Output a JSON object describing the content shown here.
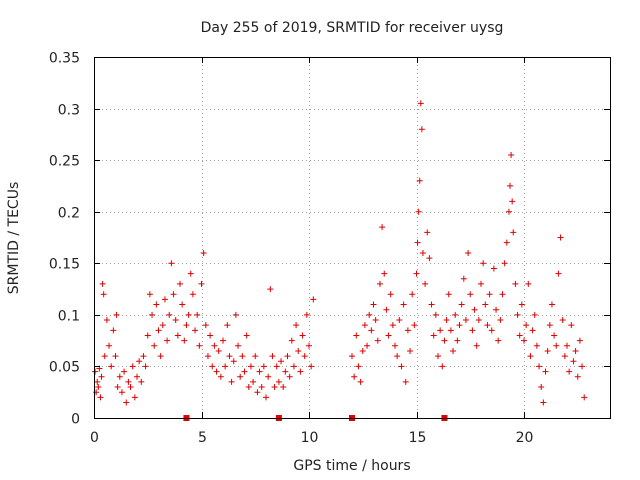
{
  "chart_data": {
    "type": "scatter",
    "title": "Day 255 of 2019, SRMTID for receiver uysg",
    "xlabel": "GPS time / hours",
    "ylabel": "SRMTID / TECUs",
    "xlim": [
      0,
      24
    ],
    "ylim": [
      0,
      0.35
    ],
    "grid": true,
    "marker": "+",
    "color": "#e00000",
    "x_ticks": [
      {
        "value": 0,
        "label": "0"
      },
      {
        "value": 5,
        "label": "5"
      },
      {
        "value": 10,
        "label": "10"
      },
      {
        "value": 15,
        "label": "15"
      },
      {
        "value": 20,
        "label": "20"
      }
    ],
    "y_ticks": [
      {
        "value": 0,
        "label": "0"
      },
      {
        "value": 0.05,
        "label": "0.05"
      },
      {
        "value": 0.1,
        "label": "0.1"
      },
      {
        "value": 0.15,
        "label": "0.15"
      },
      {
        "value": 0.2,
        "label": "0.2"
      },
      {
        "value": 0.25,
        "label": "0.25"
      },
      {
        "value": 0.3,
        "label": "0.3"
      },
      {
        "value": 0.35,
        "label": "0.35"
      }
    ],
    "gap_markers_x": [
      4.3,
      8.6,
      12.0,
      16.3
    ],
    "series": [
      {
        "name": "SRMTID",
        "points": [
          [
            0.05,
            0.045
          ],
          [
            0.1,
            0.025
          ],
          [
            0.15,
            0.035
          ],
          [
            0.2,
            0.03
          ],
          [
            0.25,
            0.048
          ],
          [
            0.3,
            0.02
          ],
          [
            0.35,
            0.04
          ],
          [
            0.4,
            0.13
          ],
          [
            0.45,
            0.12
          ],
          [
            0.5,
            0.06
          ],
          [
            0.6,
            0.095
          ],
          [
            0.7,
            0.07
          ],
          [
            0.8,
            0.05
          ],
          [
            0.9,
            0.085
          ],
          [
            1.0,
            0.06
          ],
          [
            1.05,
            0.1
          ],
          [
            1.1,
            0.03
          ],
          [
            1.2,
            0.04
          ],
          [
            1.3,
            0.025
          ],
          [
            1.4,
            0.045
          ],
          [
            1.5,
            0.015
          ],
          [
            1.6,
            0.035
          ],
          [
            1.7,
            0.03
          ],
          [
            1.8,
            0.05
          ],
          [
            1.9,
            0.02
          ],
          [
            2.0,
            0.04
          ],
          [
            2.1,
            0.055
          ],
          [
            2.2,
            0.035
          ],
          [
            2.3,
            0.06
          ],
          [
            2.4,
            0.05
          ],
          [
            2.5,
            0.08
          ],
          [
            2.6,
            0.12
          ],
          [
            2.7,
            0.1
          ],
          [
            2.8,
            0.07
          ],
          [
            2.9,
            0.11
          ],
          [
            3.0,
            0.085
          ],
          [
            3.1,
            0.06
          ],
          [
            3.2,
            0.09
          ],
          [
            3.3,
            0.115
          ],
          [
            3.4,
            0.075
          ],
          [
            3.5,
            0.1
          ],
          [
            3.6,
            0.15
          ],
          [
            3.7,
            0.12
          ],
          [
            3.8,
            0.095
          ],
          [
            3.9,
            0.08
          ],
          [
            4.0,
            0.13
          ],
          [
            4.1,
            0.11
          ],
          [
            4.2,
            0.075
          ],
          [
            4.3,
            0.09
          ],
          [
            4.4,
            0.1
          ],
          [
            4.5,
            0.14
          ],
          [
            4.6,
            0.12
          ],
          [
            4.7,
            0.085
          ],
          [
            4.8,
            0.1
          ],
          [
            4.9,
            0.07
          ],
          [
            5.0,
            0.13
          ],
          [
            5.1,
            0.16
          ],
          [
            5.2,
            0.09
          ],
          [
            5.3,
            0.06
          ],
          [
            5.4,
            0.08
          ],
          [
            5.5,
            0.05
          ],
          [
            5.6,
            0.07
          ],
          [
            5.7,
            0.045
          ],
          [
            5.8,
            0.065
          ],
          [
            5.9,
            0.04
          ],
          [
            6.0,
            0.075
          ],
          [
            6.1,
            0.05
          ],
          [
            6.2,
            0.09
          ],
          [
            6.3,
            0.06
          ],
          [
            6.4,
            0.035
          ],
          [
            6.5,
            0.055
          ],
          [
            6.6,
            0.1
          ],
          [
            6.7,
            0.07
          ],
          [
            6.8,
            0.04
          ],
          [
            6.9,
            0.06
          ],
          [
            7.0,
            0.045
          ],
          [
            7.1,
            0.08
          ],
          [
            7.2,
            0.03
          ],
          [
            7.3,
            0.05
          ],
          [
            7.4,
            0.035
          ],
          [
            7.5,
            0.06
          ],
          [
            7.6,
            0.025
          ],
          [
            7.7,
            0.045
          ],
          [
            7.8,
            0.03
          ],
          [
            7.9,
            0.05
          ],
          [
            8.0,
            0.02
          ],
          [
            8.1,
            0.04
          ],
          [
            8.2,
            0.125
          ],
          [
            8.3,
            0.06
          ],
          [
            8.4,
            0.03
          ],
          [
            8.5,
            0.05
          ],
          [
            8.6,
            0.035
          ],
          [
            8.7,
            0.055
          ],
          [
            8.8,
            0.03
          ],
          [
            8.9,
            0.045
          ],
          [
            9.0,
            0.06
          ],
          [
            9.1,
            0.04
          ],
          [
            9.2,
            0.075
          ],
          [
            9.3,
            0.05
          ],
          [
            9.4,
            0.09
          ],
          [
            9.5,
            0.065
          ],
          [
            9.6,
            0.045
          ],
          [
            9.7,
            0.08
          ],
          [
            9.8,
            0.06
          ],
          [
            9.9,
            0.1
          ],
          [
            10.0,
            0.07
          ],
          [
            10.1,
            0.05
          ],
          [
            10.2,
            0.115
          ],
          [
            12.0,
            0.06
          ],
          [
            12.1,
            0.04
          ],
          [
            12.2,
            0.08
          ],
          [
            12.3,
            0.05
          ],
          [
            12.4,
            0.035
          ],
          [
            12.5,
            0.065
          ],
          [
            12.6,
            0.09
          ],
          [
            12.7,
            0.07
          ],
          [
            12.8,
            0.1
          ],
          [
            12.9,
            0.085
          ],
          [
            13.0,
            0.11
          ],
          [
            13.1,
            0.095
          ],
          [
            13.2,
            0.075
          ],
          [
            13.3,
            0.13
          ],
          [
            13.4,
            0.185
          ],
          [
            13.5,
            0.14
          ],
          [
            13.6,
            0.105
          ],
          [
            13.7,
            0.08
          ],
          [
            13.8,
            0.12
          ],
          [
            13.9,
            0.09
          ],
          [
            14.0,
            0.07
          ],
          [
            14.1,
            0.06
          ],
          [
            14.2,
            0.095
          ],
          [
            14.3,
            0.05
          ],
          [
            14.4,
            0.11
          ],
          [
            14.5,
            0.035
          ],
          [
            14.6,
            0.085
          ],
          [
            14.7,
            0.065
          ],
          [
            14.8,
            0.12
          ],
          [
            14.9,
            0.09
          ],
          [
            15.0,
            0.14
          ],
          [
            15.05,
            0.17
          ],
          [
            15.1,
            0.2
          ],
          [
            15.15,
            0.23
          ],
          [
            15.2,
            0.305
          ],
          [
            15.25,
            0.28
          ],
          [
            15.3,
            0.16
          ],
          [
            15.4,
            0.13
          ],
          [
            15.5,
            0.18
          ],
          [
            15.6,
            0.155
          ],
          [
            15.7,
            0.11
          ],
          [
            15.8,
            0.08
          ],
          [
            15.9,
            0.1
          ],
          [
            16.0,
            0.06
          ],
          [
            16.1,
            0.085
          ],
          [
            16.2,
            0.05
          ],
          [
            16.3,
            0.075
          ],
          [
            16.4,
            0.095
          ],
          [
            16.5,
            0.12
          ],
          [
            16.6,
            0.085
          ],
          [
            16.7,
            0.065
          ],
          [
            16.8,
            0.1
          ],
          [
            16.9,
            0.075
          ],
          [
            17.0,
            0.09
          ],
          [
            17.1,
            0.11
          ],
          [
            17.2,
            0.135
          ],
          [
            17.3,
            0.095
          ],
          [
            17.4,
            0.16
          ],
          [
            17.5,
            0.12
          ],
          [
            17.6,
            0.085
          ],
          [
            17.7,
            0.105
          ],
          [
            17.8,
            0.07
          ],
          [
            17.9,
            0.095
          ],
          [
            18.0,
            0.13
          ],
          [
            18.1,
            0.15
          ],
          [
            18.2,
            0.11
          ],
          [
            18.3,
            0.09
          ],
          [
            18.4,
            0.12
          ],
          [
            18.5,
            0.085
          ],
          [
            18.6,
            0.145
          ],
          [
            18.7,
            0.105
          ],
          [
            18.8,
            0.075
          ],
          [
            18.9,
            0.095
          ],
          [
            19.0,
            0.12
          ],
          [
            19.1,
            0.15
          ],
          [
            19.2,
            0.17
          ],
          [
            19.3,
            0.2
          ],
          [
            19.35,
            0.225
          ],
          [
            19.4,
            0.255
          ],
          [
            19.45,
            0.21
          ],
          [
            19.5,
            0.18
          ],
          [
            19.6,
            0.13
          ],
          [
            19.7,
            0.1
          ],
          [
            19.8,
            0.08
          ],
          [
            19.9,
            0.11
          ],
          [
            20.0,
            0.075
          ],
          [
            20.1,
            0.09
          ],
          [
            20.2,
            0.13
          ],
          [
            20.3,
            0.06
          ],
          [
            20.4,
            0.085
          ],
          [
            20.5,
            0.1
          ],
          [
            20.6,
            0.07
          ],
          [
            20.7,
            0.05
          ],
          [
            20.8,
            0.03
          ],
          [
            20.9,
            0.015
          ],
          [
            21.0,
            0.045
          ],
          [
            21.1,
            0.065
          ],
          [
            21.2,
            0.09
          ],
          [
            21.3,
            0.11
          ],
          [
            21.4,
            0.08
          ],
          [
            21.5,
            0.07
          ],
          [
            21.6,
            0.14
          ],
          [
            21.7,
            0.175
          ],
          [
            21.8,
            0.095
          ],
          [
            21.9,
            0.06
          ],
          [
            22.0,
            0.07
          ],
          [
            22.1,
            0.045
          ],
          [
            22.2,
            0.09
          ],
          [
            22.3,
            0.055
          ],
          [
            22.4,
            0.065
          ],
          [
            22.5,
            0.04
          ],
          [
            22.6,
            0.075
          ],
          [
            22.7,
            0.05
          ],
          [
            22.8,
            0.02
          ]
        ]
      }
    ]
  }
}
